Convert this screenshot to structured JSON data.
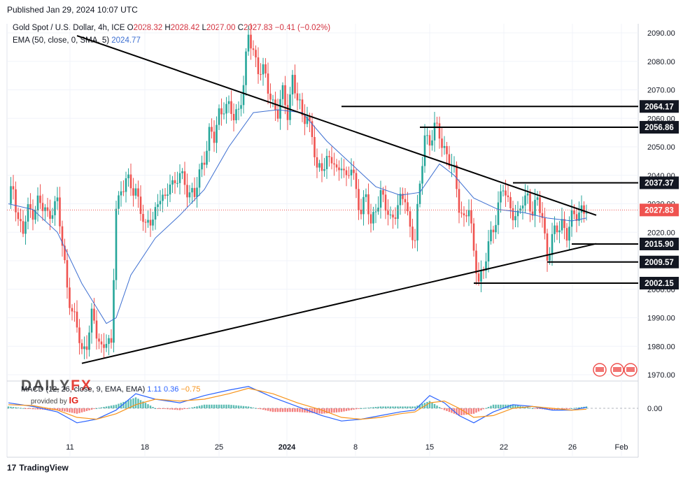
{
  "header": {
    "published": "Published Jan 29, 2024 10:07 UTC"
  },
  "legend": {
    "symbol": "Gold Spot / U.S. Dollar, 4h, ICE",
    "open_label": "O",
    "open": "2028.32",
    "high_label": "H",
    "high": "2028.42",
    "low_label": "L",
    "low": "2027.00",
    "close_label": "C",
    "close": "2027.83",
    "change": "−0.41 (−0.02%)",
    "ema_label": "EMA (50, close, 0, SMA, 5)",
    "ema_value": "2024.77"
  },
  "macd": {
    "label": "MACD (12, 26, close, 9, EMA, EMA)",
    "v1": "1.11",
    "v2": "0.36",
    "v3": "−0.75",
    "zero_label": "0.00"
  },
  "branding": {
    "dailyfx_a": "DAILY",
    "dailyfx_b": "FX",
    "provided_by": "provided by",
    "ig": "IG",
    "tradingview": "TradingView",
    "tv_logo": "17"
  },
  "colors": {
    "up": "#26a69a",
    "down": "#ef5350",
    "ema": "#3d6fd1",
    "macd": "#2962ff",
    "signal": "#f7931a",
    "line": "#000000"
  },
  "chart_data": {
    "type": "candlestick",
    "title": "Gold Spot / U.S. Dollar, 4h",
    "ylim": [
      1970,
      2090
    ],
    "y_ticks": [
      1970,
      1980,
      1990,
      2000,
      2010,
      2020,
      2030,
      2040,
      2050,
      2060,
      2070,
      2080,
      2090
    ],
    "y_tick_labels": [
      "1970.00",
      "1980.00",
      "1990.00",
      "2000.00",
      "2010.00",
      "2020.00",
      "2030.00",
      "2040.00",
      "2050.00",
      "2060.00",
      "2070.00",
      "2080.00",
      "2090.00"
    ],
    "x_labels": [
      "11",
      "18",
      "25",
      "2024",
      "8",
      "15",
      "22",
      "26",
      "Feb"
    ],
    "last_price": 2027.83,
    "last_price_label": "2027.83",
    "levels": [
      {
        "value": 2064.17,
        "label": "2064.17"
      },
      {
        "value": 2056.86,
        "label": "2056.86"
      },
      {
        "value": 2037.37,
        "label": "2037.37"
      },
      {
        "value": 2015.9,
        "label": "2015.90"
      },
      {
        "value": 2009.57,
        "label": "2009.57"
      },
      {
        "value": 2002.15,
        "label": "2002.15"
      }
    ],
    "trendlines": [
      {
        "name": "descending-resistance",
        "from": [
          28,
          2089
        ],
        "to": [
          240,
          2026
        ]
      },
      {
        "name": "ascending-support",
        "from": [
          30,
          1974
        ],
        "to": [
          240,
          2016
        ]
      }
    ],
    "close_path": [
      [
        0,
        2030
      ],
      [
        2,
        2036
      ],
      [
        4,
        2025
      ],
      [
        6,
        2020
      ],
      [
        8,
        2027
      ],
      [
        10,
        2028
      ],
      [
        12,
        2031
      ],
      [
        14,
        2028
      ],
      [
        16,
        2026
      ],
      [
        18,
        2029
      ],
      [
        20,
        2030
      ],
      [
        22,
        2015
      ],
      [
        24,
        2002
      ],
      [
        26,
        1992
      ],
      [
        28,
        1986
      ],
      [
        30,
        1978
      ],
      [
        32,
        1982
      ],
      [
        34,
        1990
      ],
      [
        36,
        1984
      ],
      [
        38,
        1980
      ],
      [
        40,
        1983
      ],
      [
        42,
        1978
      ],
      [
        44,
        2030
      ],
      [
        46,
        2035
      ],
      [
        48,
        2038
      ],
      [
        50,
        2035
      ],
      [
        52,
        2036
      ],
      [
        54,
        2028
      ],
      [
        56,
        2020
      ],
      [
        58,
        2025
      ],
      [
        60,
        2028
      ],
      [
        62,
        2032
      ],
      [
        64,
        2030
      ],
      [
        66,
        2040
      ],
      [
        68,
        2036
      ],
      [
        70,
        2040
      ],
      [
        72,
        2037
      ],
      [
        74,
        2035
      ],
      [
        76,
        2032
      ],
      [
        78,
        2040
      ],
      [
        80,
        2047
      ],
      [
        82,
        2055
      ],
      [
        84,
        2052
      ],
      [
        86,
        2062
      ],
      [
        88,
        2065
      ],
      [
        90,
        2063
      ],
      [
        92,
        2060
      ],
      [
        94,
        2064
      ],
      [
        96,
        2072
      ],
      [
        98,
        2088
      ],
      [
        100,
        2084
      ],
      [
        102,
        2078
      ],
      [
        104,
        2076
      ],
      [
        106,
        2070
      ],
      [
        108,
        2066
      ],
      [
        110,
        2062
      ],
      [
        112,
        2068
      ],
      [
        114,
        2062
      ],
      [
        116,
        2075
      ],
      [
        118,
        2066
      ],
      [
        120,
        2060
      ],
      [
        122,
        2062
      ],
      [
        124,
        2054
      ],
      [
        126,
        2040
      ],
      [
        128,
        2044
      ],
      [
        130,
        2046
      ],
      [
        132,
        2045
      ],
      [
        134,
        2040
      ],
      [
        136,
        2046
      ],
      [
        138,
        2038
      ],
      [
        140,
        2042
      ],
      [
        142,
        2035
      ],
      [
        144,
        2028
      ],
      [
        146,
        2032
      ],
      [
        148,
        2022
      ],
      [
        150,
        2030
      ],
      [
        152,
        2033
      ],
      [
        154,
        2028
      ],
      [
        156,
        2025
      ],
      [
        158,
        2028
      ],
      [
        160,
        2030
      ],
      [
        162,
        2032
      ],
      [
        164,
        2022
      ],
      [
        166,
        2018
      ],
      [
        168,
        2035
      ],
      [
        170,
        2055
      ],
      [
        172,
        2052
      ],
      [
        174,
        2056
      ],
      [
        176,
        2054
      ],
      [
        178,
        2050
      ],
      [
        180,
        2045
      ],
      [
        182,
        2040
      ],
      [
        184,
        2030
      ],
      [
        186,
        2025
      ],
      [
        188,
        2028
      ],
      [
        190,
        2012
      ],
      [
        192,
        2005
      ],
      [
        194,
        2006
      ],
      [
        196,
        2015
      ],
      [
        198,
        2022
      ],
      [
        200,
        2030
      ],
      [
        202,
        2035
      ],
      [
        204,
        2030
      ],
      [
        206,
        2028
      ],
      [
        208,
        2025
      ],
      [
        210,
        2030
      ],
      [
        212,
        2033
      ],
      [
        214,
        2028
      ],
      [
        216,
        2030
      ],
      [
        218,
        2025
      ],
      [
        220,
        2012
      ],
      [
        222,
        2018
      ],
      [
        224,
        2020
      ],
      [
        226,
        2024
      ],
      [
        228,
        2020
      ],
      [
        230,
        2024
      ],
      [
        232,
        2026
      ],
      [
        234,
        2029
      ],
      [
        236,
        2028
      ]
    ],
    "ema_path": [
      [
        0,
        2030
      ],
      [
        10,
        2028
      ],
      [
        20,
        2020
      ],
      [
        30,
        2002
      ],
      [
        40,
        1988
      ],
      [
        44,
        1990
      ],
      [
        50,
        2005
      ],
      [
        60,
        2018
      ],
      [
        70,
        2026
      ],
      [
        80,
        2035
      ],
      [
        90,
        2050
      ],
      [
        100,
        2062
      ],
      [
        110,
        2063
      ],
      [
        120,
        2062
      ],
      [
        130,
        2052
      ],
      [
        140,
        2044
      ],
      [
        150,
        2036
      ],
      [
        160,
        2033
      ],
      [
        168,
        2034
      ],
      [
        176,
        2044
      ],
      [
        182,
        2040
      ],
      [
        190,
        2032
      ],
      [
        200,
        2028
      ],
      [
        210,
        2027
      ],
      [
        220,
        2025
      ],
      [
        230,
        2024
      ],
      [
        236,
        2025
      ]
    ],
    "macd_series": {
      "macd": [
        [
          0,
          3
        ],
        [
          10,
          1
        ],
        [
          20,
          -2
        ],
        [
          28,
          -8
        ],
        [
          36,
          -6
        ],
        [
          44,
          -1
        ],
        [
          52,
          8
        ],
        [
          60,
          5
        ],
        [
          70,
          3
        ],
        [
          80,
          7
        ],
        [
          90,
          10
        ],
        [
          98,
          12
        ],
        [
          108,
          6
        ],
        [
          118,
          1
        ],
        [
          128,
          -4
        ],
        [
          136,
          -7
        ],
        [
          144,
          -6
        ],
        [
          152,
          -4
        ],
        [
          160,
          -2
        ],
        [
          166,
          -1
        ],
        [
          172,
          7
        ],
        [
          178,
          3
        ],
        [
          184,
          -4
        ],
        [
          190,
          -8
        ],
        [
          198,
          -2
        ],
        [
          206,
          2
        ],
        [
          214,
          1
        ],
        [
          222,
          -1
        ],
        [
          230,
          -1
        ],
        [
          236,
          0.5
        ]
      ],
      "signal": [
        [
          0,
          2
        ],
        [
          10,
          1.5
        ],
        [
          20,
          -1
        ],
        [
          28,
          -5
        ],
        [
          36,
          -6
        ],
        [
          44,
          -3
        ],
        [
          52,
          2
        ],
        [
          60,
          5
        ],
        [
          70,
          4
        ],
        [
          80,
          5
        ],
        [
          90,
          8
        ],
        [
          98,
          11
        ],
        [
          108,
          8
        ],
        [
          118,
          3
        ],
        [
          128,
          -1
        ],
        [
          136,
          -5
        ],
        [
          144,
          -6
        ],
        [
          152,
          -5
        ],
        [
          160,
          -3
        ],
        [
          166,
          -2
        ],
        [
          172,
          3
        ],
        [
          178,
          4
        ],
        [
          184,
          0
        ],
        [
          190,
          -5
        ],
        [
          198,
          -4
        ],
        [
          206,
          0
        ],
        [
          214,
          1
        ],
        [
          222,
          0
        ],
        [
          230,
          -1
        ],
        [
          236,
          -0.5
        ]
      ]
    }
  }
}
